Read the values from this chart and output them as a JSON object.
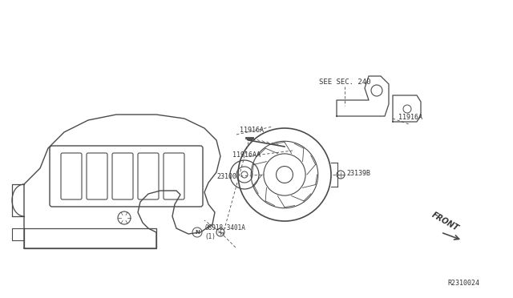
{
  "bg_color": "#ffffff",
  "fig_width": 6.4,
  "fig_height": 3.72,
  "dpi": 100,
  "diagram_ref": "R2310024",
  "labels": {
    "see_sec": "SEE SEC. 240",
    "11916A_top_left": "11916A",
    "11916A_top_right": "11916A",
    "11916AA": "11916AA",
    "23100": "23100",
    "23139B": "23139B",
    "bolt_label": "08918-3401A\n(1)",
    "bolt_N": "N",
    "front_label": "FRONT",
    "ref_code": "R2310024"
  },
  "line_color": "#4a4a4a",
  "text_color": "#333333"
}
